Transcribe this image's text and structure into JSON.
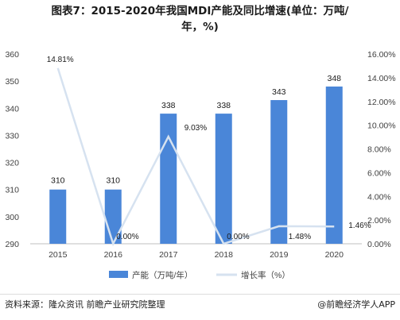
{
  "title_line1": "图表7：2015-2020年我国MDI产能及同比增速(单位：万吨/",
  "title_line2": "年，%)",
  "footer": {
    "source": "资料来源：隆众资讯 前瞻产业研究院整理",
    "brand": "@前瞻经济学人APP"
  },
  "colors": {
    "bar": "#4A86D8",
    "line": "#D6E2F0",
    "text": "#404040",
    "axis": "#BFBFBF"
  },
  "chart_data": {
    "type": "bar",
    "categories": [
      "2015",
      "2016",
      "2017",
      "2018",
      "2019",
      "2020"
    ],
    "series": [
      {
        "name": "产能（万吨/年）",
        "type": "bar",
        "axis": "left",
        "values": [
          310,
          310,
          338,
          338,
          343,
          348
        ],
        "labels": [
          "310",
          "310",
          "338",
          "338",
          "343",
          "348"
        ]
      },
      {
        "name": "增长率（%）",
        "type": "line",
        "axis": "right",
        "values": [
          14.81,
          0.0,
          9.03,
          0.0,
          1.48,
          1.46
        ],
        "labels": [
          "14.81%",
          "0.00%",
          "9.03%",
          "0.00%",
          "1.48%",
          "1.46%"
        ]
      }
    ],
    "y_left": {
      "min": 290,
      "max": 360,
      "ticks": [
        "290",
        "300",
        "310",
        "320",
        "330",
        "340",
        "350",
        "360"
      ]
    },
    "y_right": {
      "min": 0,
      "max": 16,
      "ticks": [
        "0.00%",
        "2.00%",
        "4.00%",
        "6.00%",
        "8.00%",
        "10.00%",
        "12.00%",
        "14.00%",
        "16.00%"
      ]
    },
    "grid": false,
    "legend_position": "bottom"
  }
}
